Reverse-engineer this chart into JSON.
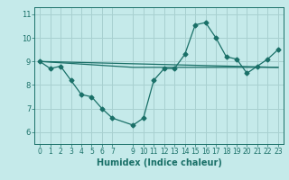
{
  "xlabel": "Humidex (Indice chaleur)",
  "bg_color": "#c5eaea",
  "grid_color": "#a8d0d0",
  "line_color": "#1a7068",
  "xlim": [
    -0.5,
    23.5
  ],
  "ylim": [
    5.5,
    11.3
  ],
  "series1_x": [
    0,
    1,
    2,
    3,
    4,
    5,
    6,
    7,
    9,
    10,
    11,
    12,
    13,
    14,
    15,
    16,
    17,
    18,
    19,
    20,
    21,
    22,
    23
  ],
  "series1_y": [
    9.0,
    8.7,
    8.8,
    8.2,
    7.6,
    7.5,
    7.0,
    6.6,
    6.3,
    6.6,
    8.2,
    8.7,
    8.7,
    9.3,
    10.55,
    10.65,
    10.0,
    9.2,
    9.1,
    8.5,
    8.8,
    9.1,
    9.5
  ],
  "series2_x": [
    0,
    23
  ],
  "series2_y": [
    9.0,
    8.75
  ],
  "series3_x": [
    0,
    9,
    10,
    11,
    12,
    13,
    14,
    15,
    16,
    17,
    18,
    19,
    20,
    21,
    22,
    23
  ],
  "series3_y": [
    9.0,
    8.75,
    8.75,
    8.75,
    8.75,
    8.75,
    8.75,
    8.75,
    8.75,
    8.75,
    8.75,
    8.75,
    8.75,
    8.75,
    8.75,
    8.75
  ],
  "x_ticks": [
    0,
    1,
    2,
    3,
    4,
    5,
    6,
    7,
    9,
    10,
    11,
    12,
    13,
    14,
    15,
    16,
    17,
    18,
    19,
    20,
    21,
    22,
    23
  ],
  "y_ticks": [
    6,
    7,
    8,
    9,
    10,
    11
  ],
  "xlabel_fontsize": 7,
  "tick_fontsize": 5.5
}
